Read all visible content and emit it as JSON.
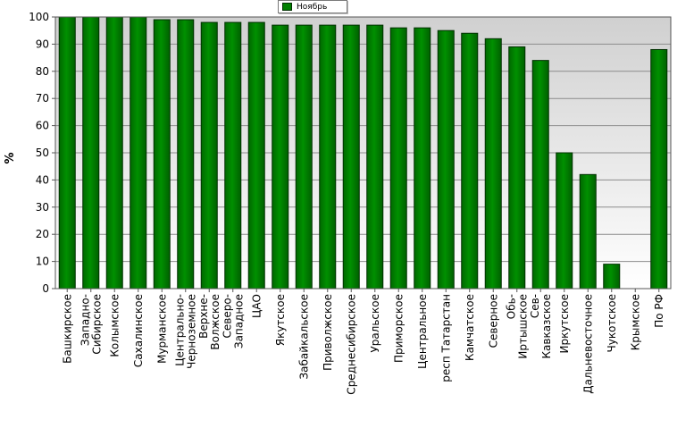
{
  "chart_data": {
    "type": "bar",
    "title": "",
    "xlabel": "",
    "ylabel": "%",
    "ylim": [
      0,
      100
    ],
    "yticks": [
      0,
      10,
      20,
      30,
      40,
      50,
      60,
      70,
      80,
      90,
      100
    ],
    "grid": true,
    "legend_position": "top-center",
    "bar_color": "#008000",
    "categories": [
      "Башкирское",
      "Западно-Сибирское",
      "Колымское",
      "Сахалинское",
      "Мурманское",
      "Центрально-Черноземное",
      "Верхне-Волжское",
      "Северо-Западное",
      "ЦАО",
      "Якутское",
      "Забайкальское",
      "Приволжское",
      "Среднесибирское",
      "Уральское",
      "Приморское",
      "Центральное",
      "респ Татарстан",
      "Камчатское",
      "Северное",
      "Обь-Иртышское",
      "Сев-Кавказское",
      "Иркутское",
      "Дальневосточное",
      "Чукотское",
      "Крымское",
      "По РФ"
    ],
    "series": [
      {
        "name": "Ноябрь",
        "values": [
          100,
          100,
          100,
          100,
          99,
          99,
          98,
          98,
          98,
          97,
          97,
          97,
          97,
          97,
          96,
          96,
          95,
          94,
          92,
          89,
          84,
          50,
          42,
          9,
          0,
          88
        ]
      }
    ]
  }
}
